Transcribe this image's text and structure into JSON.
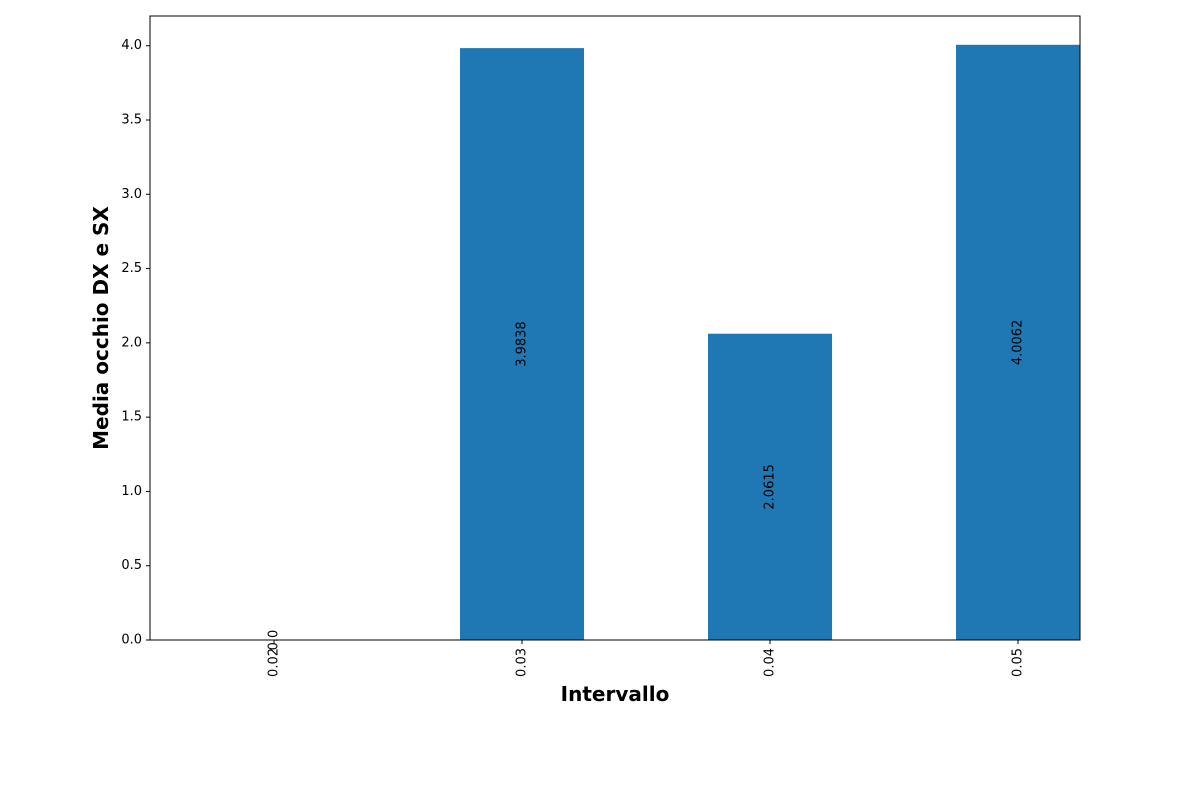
{
  "chart_data": {
    "type": "bar",
    "categories": [
      "0.02",
      "0.03",
      "0.04",
      "0.05"
    ],
    "values": [
      0.0,
      3.9838,
      2.0615,
      4.0062
    ],
    "data_labels": [
      "0.0",
      "3.9838",
      "2.0615",
      "4.0062"
    ],
    "title": "",
    "xlabel": "Intervallo",
    "ylabel": "Media occhio DX e SX",
    "ylim": [
      0,
      4.2
    ],
    "yticks": [
      0.0,
      0.5,
      1.0,
      1.5,
      2.0,
      2.5,
      3.0,
      3.5,
      4.0
    ],
    "ytick_labels": [
      "0.0",
      "0.5",
      "1.0",
      "1.5",
      "2.0",
      "2.5",
      "3.0",
      "3.5",
      "4.0"
    ],
    "x_tick_rotation": "vertical",
    "data_label_rotation": "vertical",
    "data_label_position": "center",
    "grid": false,
    "legend": "none",
    "bar_color": "#1f77b4"
  }
}
